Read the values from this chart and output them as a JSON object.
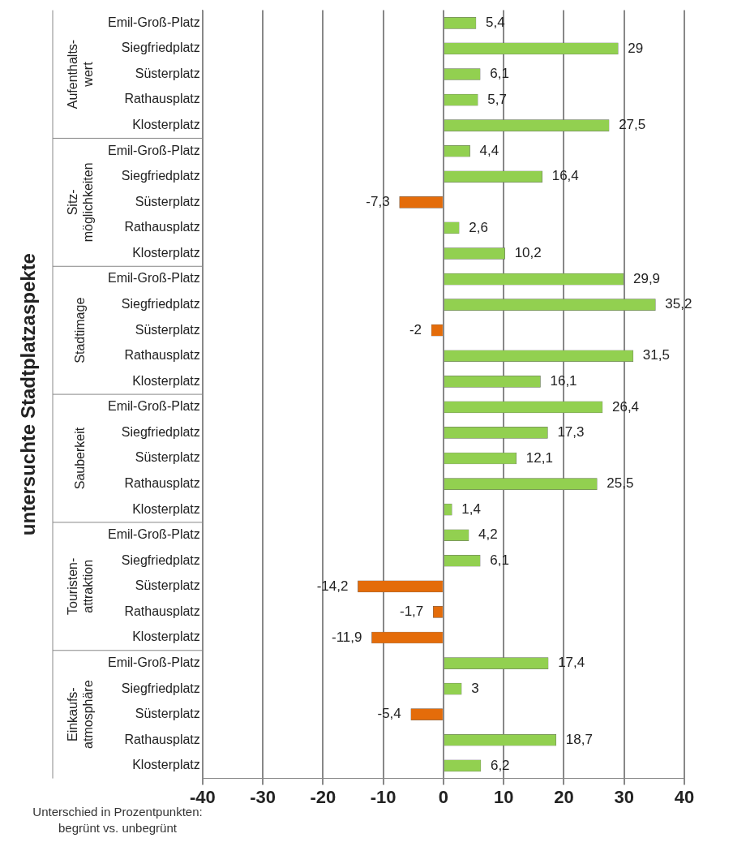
{
  "chart_data": {
    "type": "bar",
    "orientation": "horizontal",
    "ylabel": "untersuchte Stadtplatzaspekte",
    "xlabel": "Unterschied in Prozentpunkten: begrünt vs. unbegrünt",
    "annotations": [
      "Aufenthalts-wert",
      "Sitz-möglichkeiten",
      "Stadtimage",
      "Sauberkeit",
      "Touristen-attraktion",
      "Einkaufs-atmosphäre"
    ],
    "categories": [
      "Emil-Groß-Platz",
      "Siegfriedplatz",
      "Süsterplatz",
      "Rathausplatz",
      "Klosterplatz",
      "Emil-Groß-Platz",
      "Siegfriedplatz",
      "Süsterplatz",
      "Rathausplatz",
      "Klosterplatz",
      "Emil-Groß-Platz",
      "Siegfriedplatz",
      "Süsterplatz",
      "Rathausplatz",
      "Klosterplatz",
      "Emil-Groß-Platz",
      "Siegfriedplatz",
      "Süsterplatz",
      "Rathausplatz",
      "Klosterplatz",
      "Emil-Groß-Platz",
      "Siegfriedplatz",
      "Süsterplatz",
      "Rathausplatz",
      "Klosterplatz",
      "Emil-Groß-Platz",
      "Siegfriedplatz",
      "Süsterplatz",
      "Rathausplatz",
      "Klosterplatz"
    ],
    "values": [
      5.4,
      29,
      6.1,
      5.7,
      27.5,
      4.4,
      16.4,
      -7.3,
      2.6,
      10.2,
      29.9,
      35.2,
      -2,
      31.5,
      16.1,
      26.4,
      17.3,
      12.1,
      25.5,
      1.4,
      4.2,
      6.1,
      -14.2,
      -1.7,
      -11.9,
      17.4,
      3,
      -5.4,
      18.7,
      6.2
    ],
    "value_labels": [
      "5,4",
      "29",
      "6,1",
      "5,7",
      "27,5",
      "4,4",
      "16,4",
      "-7,3",
      "2,6",
      "10,2",
      "29,9",
      "35,2",
      "-2",
      "31,5",
      "16,1",
      "26,4",
      "17,3",
      "12,1",
      "25,5",
      "1,4",
      "4,2",
      "6,1",
      "-14,2",
      "-1,7",
      "-11,9",
      "17,4",
      "3",
      "-5,4",
      "18,7",
      "6,2"
    ],
    "colors": [
      "#92d050",
      "#92d050",
      "#92d050",
      "#92d050",
      "#92d050",
      "#92d050",
      "#92d050",
      "#e46c0a",
      "#92d050",
      "#92d050",
      "#92d050",
      "#92d050",
      "#e46c0a",
      "#92d050",
      "#92d050",
      "#92d050",
      "#92d050",
      "#92d050",
      "#92d050",
      "#92d050",
      "#92d050",
      "#92d050",
      "#e46c0a",
      "#e46c0a",
      "#e46c0a",
      "#92d050",
      "#92d050",
      "#e46c0a",
      "#92d050",
      "#92d050"
    ],
    "xlim": [
      -40,
      40
    ],
    "xticks": [
      -40,
      -30,
      -20,
      -10,
      0,
      10,
      20,
      30,
      40
    ],
    "grid": "x",
    "legend": false
  }
}
